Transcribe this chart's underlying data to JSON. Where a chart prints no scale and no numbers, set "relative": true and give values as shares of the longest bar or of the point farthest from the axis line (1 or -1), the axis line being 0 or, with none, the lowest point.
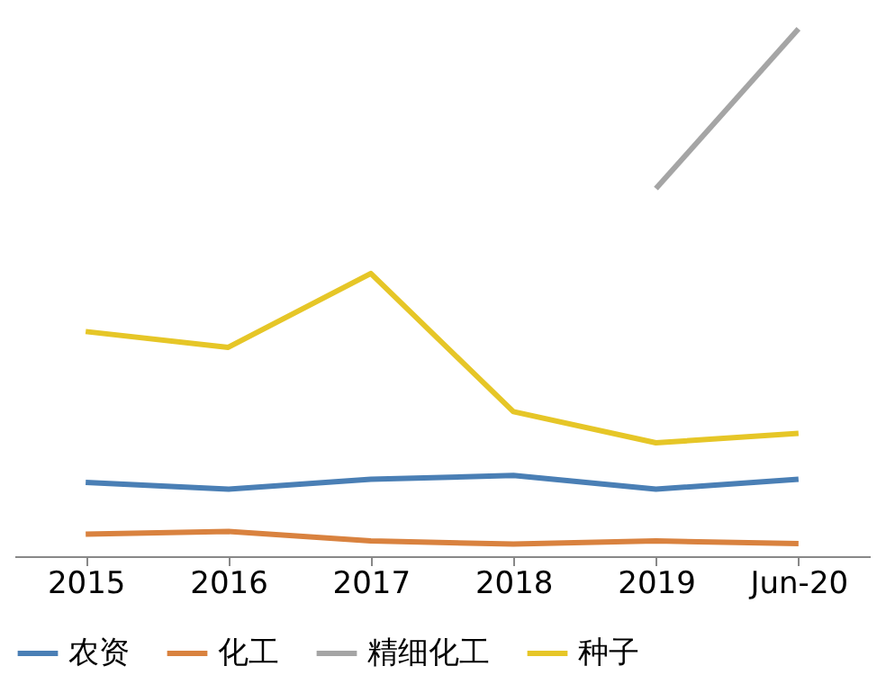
{
  "chart_data": {
    "type": "line",
    "relative": true,
    "categories": [
      "2015",
      "2016",
      "2017",
      "2018",
      "2019",
      "Jun-20"
    ],
    "series": [
      {
        "name": "农资",
        "color": "#4a7fb5",
        "values": [
          0.14,
          0.127,
          0.146,
          0.153,
          0.127,
          0.146
        ]
      },
      {
        "name": "化工",
        "color": "#d9823f",
        "values": [
          0.042,
          0.047,
          0.029,
          0.023,
          0.029,
          0.024
        ]
      },
      {
        "name": "精细化工",
        "color": "#a5a5a5",
        "values": [
          null,
          null,
          null,
          null,
          0.697,
          1
        ]
      },
      {
        "name": "种子",
        "color": "#e6c627",
        "values": [
          0.426,
          0.396,
          0.536,
          0.274,
          0.215,
          0.233
        ]
      }
    ],
    "legend": "bottom",
    "grid": false,
    "marker": "none",
    "line_style": "solid"
  }
}
